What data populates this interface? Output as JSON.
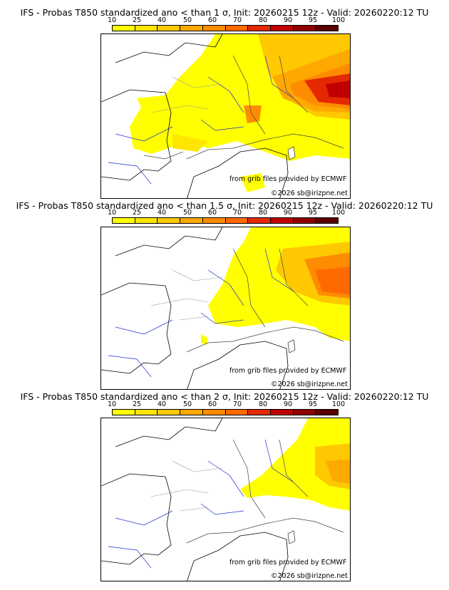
{
  "colorbar": {
    "ticks": [
      "10",
      "25",
      "40",
      "50",
      "60",
      "70",
      "80",
      "90",
      "95",
      "100"
    ],
    "colors": [
      "#ffff00",
      "#ffe600",
      "#ffc800",
      "#ffa800",
      "#ff8c00",
      "#ff6a00",
      "#e62800",
      "#c00000",
      "#900000",
      "#5a0000"
    ]
  },
  "panels": [
    {
      "title": "IFS - Probas T850  standardized ano < than 1 σ, Init: 20260215 12z - Valid: 20260220:12 TU",
      "credit": "from grib files provided by ECMWF",
      "copyright": "©2026 sb@irizpne.net"
    },
    {
      "title": "IFS - Probas T850  standardized ano < than 1.5 σ, Init: 20260215 12z - Valid: 20260220:12 TU",
      "credit": "from grib files provided by ECMWF",
      "copyright": "©2026 sb@irizpne.net"
    },
    {
      "title": "IFS - Probas T850  standardized ano < than 2 σ, Init: 20260215 12z - Valid: 20260220:12 TU",
      "credit": "from grib files provided by ECMWF",
      "copyright": "©2026 sb@irizpne.net"
    }
  ]
}
